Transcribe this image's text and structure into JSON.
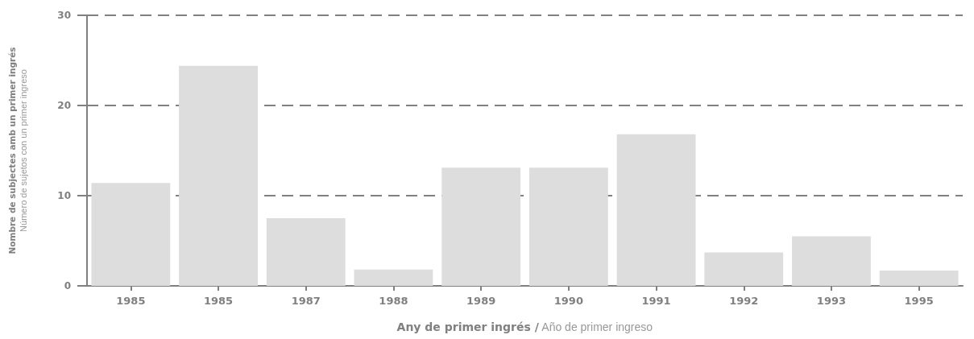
{
  "chart_data": {
    "type": "bar",
    "categories": [
      "1985",
      "1985",
      "1987",
      "1988",
      "1989",
      "1990",
      "1991",
      "1992",
      "1993",
      "1995"
    ],
    "values": [
      11.4,
      24.4,
      7.5,
      1.8,
      13.1,
      13.1,
      16.8,
      3.7,
      5.5,
      1.7
    ],
    "color": "#dddddd",
    "xlabel": "Any de primer ingrés / Año de primer ingreso",
    "ylabel": "Nombre de subjectes amb un primer ingrés\nNúmero de sujetos con un primer ingreso",
    "ylim": [
      0,
      30
    ],
    "yticks": [
      0,
      10,
      20,
      30
    ],
    "grid": "y"
  }
}
